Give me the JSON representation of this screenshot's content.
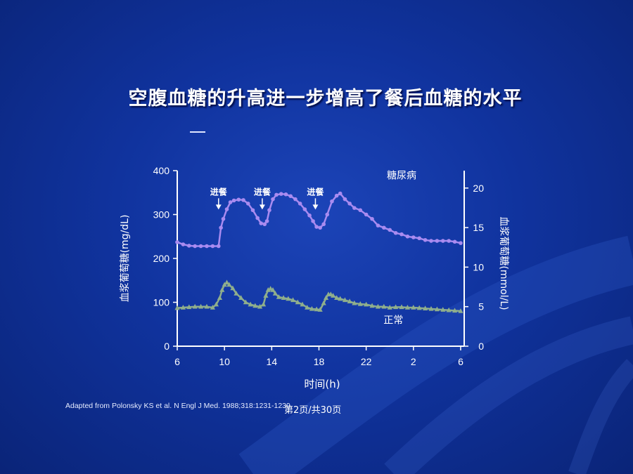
{
  "slide": {
    "title": "空腹血糖的升高进一步增高了餐后血糖的水平",
    "citation": "Adapted from Polonsky KS et al. N Engl J Med. 1988;318:1231-1239.",
    "page_number": "第2页/共30页"
  },
  "colors": {
    "background": "#10339e",
    "diabetes_series": "#a98bf0",
    "normal_series": "#8fae8c",
    "axis": "#ffffff"
  },
  "chart_data": {
    "type": "line",
    "xlabel": "时间(h)",
    "ylabel": "血浆葡萄糖(mg/dL)",
    "y2label": "血浆葡萄糖(mmol/L)",
    "x_ticks": [
      "6",
      "10",
      "14",
      "18",
      "22",
      "2",
      "6"
    ],
    "x_tick_hours": [
      6,
      10,
      14,
      18,
      22,
      26,
      30
    ],
    "xlim": [
      6,
      30.3
    ],
    "ylim": [
      0,
      400
    ],
    "y_ticks": [
      0,
      100,
      200,
      300,
      400
    ],
    "y2lim": [
      0,
      22.2
    ],
    "y2_ticks": [
      0,
      5,
      10,
      15,
      20
    ],
    "annotations": [
      {
        "text": "进餐",
        "x": 9.5,
        "y": 345
      },
      {
        "text": "进餐",
        "x": 13.2,
        "y": 345
      },
      {
        "text": "进餐",
        "x": 17.7,
        "y": 345
      }
    ],
    "series": [
      {
        "name": "糖尿病",
        "label_x": 25,
        "label_y": 382,
        "x": [
          6,
          6.5,
          7,
          7.5,
          8,
          8.5,
          9,
          9.5,
          9.7,
          9.9,
          10.2,
          10.5,
          10.8,
          11.2,
          11.6,
          12,
          12.4,
          12.8,
          13.1,
          13.4,
          13.6,
          13.8,
          14.1,
          14.4,
          14.8,
          15.2,
          15.6,
          16,
          16.4,
          16.8,
          17.2,
          17.5,
          17.8,
          18.1,
          18.4,
          18.7,
          19.1,
          19.5,
          19.8,
          20.2,
          20.6,
          21,
          21.5,
          22,
          22.5,
          23,
          23.5,
          24,
          24.5,
          25,
          25.5,
          26,
          26.5,
          27,
          27.5,
          28,
          28.5,
          29,
          29.5,
          30
        ],
        "y": [
          237,
          232,
          229,
          228,
          228,
          228,
          228,
          228,
          270,
          290,
          312,
          328,
          332,
          334,
          333,
          325,
          310,
          292,
          280,
          278,
          285,
          310,
          335,
          345,
          347,
          346,
          342,
          335,
          325,
          312,
          298,
          285,
          272,
          270,
          278,
          300,
          330,
          343,
          348,
          335,
          325,
          315,
          310,
          300,
          290,
          275,
          270,
          265,
          258,
          255,
          250,
          248,
          246,
          242,
          240,
          240,
          240,
          240,
          238,
          235
        ]
      },
      {
        "name": "正常",
        "label_x": 24.3,
        "label_y": 52,
        "x": [
          6,
          6.5,
          7,
          7.5,
          8,
          8.5,
          9,
          9.3,
          9.6,
          9.8,
          10,
          10.2,
          10.4,
          10.7,
          11,
          11.4,
          11.8,
          12.2,
          12.6,
          13,
          13.3,
          13.5,
          13.7,
          13.9,
          14.1,
          14.3,
          14.6,
          15,
          15.4,
          15.8,
          16.2,
          16.6,
          17,
          17.4,
          17.8,
          18.1,
          18.4,
          18.6,
          18.8,
          19,
          19.2,
          19.5,
          19.8,
          20.2,
          20.6,
          21,
          21.5,
          22,
          22.5,
          23,
          23.5,
          24,
          24.5,
          25,
          25.5,
          26,
          26.5,
          27,
          27.5,
          28,
          28.5,
          29,
          29.5,
          30
        ],
        "y": [
          87,
          88,
          89,
          90,
          90,
          90,
          88,
          95,
          110,
          128,
          140,
          145,
          140,
          132,
          120,
          110,
          100,
          95,
          92,
          90,
          95,
          115,
          128,
          131,
          128,
          120,
          112,
          110,
          108,
          105,
          100,
          95,
          88,
          85,
          84,
          83,
          98,
          110,
          118,
          118,
          115,
          110,
          108,
          105,
          102,
          98,
          96,
          95,
          92,
          90,
          90,
          88,
          89,
          89,
          88,
          88,
          87,
          86,
          85,
          84,
          83,
          82,
          81,
          80
        ]
      }
    ]
  }
}
